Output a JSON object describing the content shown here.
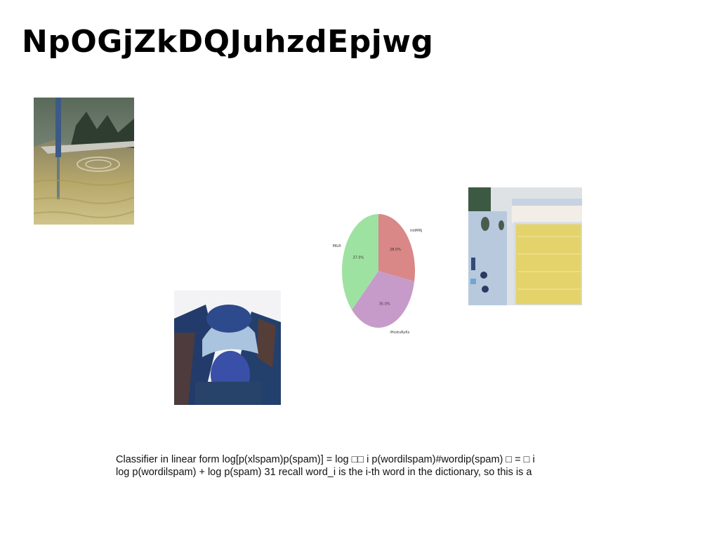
{
  "slide": {
    "title": "NpOGjZkDQJuhzdEpjwg",
    "body_lines": [
      "Classifier in linear form log[p(xlspam)p(spam)] = log □□ i p(wordilspam)#wordip(spam) □ = □ i",
      "log p(wordilspam) + log p(spam) 31 recall word_i is the i-th word in the dictionary, so this is a"
    ]
  },
  "images": {
    "img1": "fountain-pool-photo",
    "img2": "person-with-hat-photo",
    "img3": "aerial-pool-photo"
  },
  "chart_data": {
    "type": "pie",
    "slices": [
      {
        "label": "mtIMRj",
        "value": 28.0,
        "pct_label": "28.0%",
        "color": "#d98787"
      },
      {
        "label": "iHostuRyKs",
        "value": 35.0,
        "pct_label": "35.0%",
        "color": "#c79bc9"
      },
      {
        "label": "MlLR",
        "value": 37.0,
        "pct_label": "37.0%",
        "color": "#9ee2a2"
      }
    ],
    "start_angle": 90,
    "direction": "clockwise"
  }
}
